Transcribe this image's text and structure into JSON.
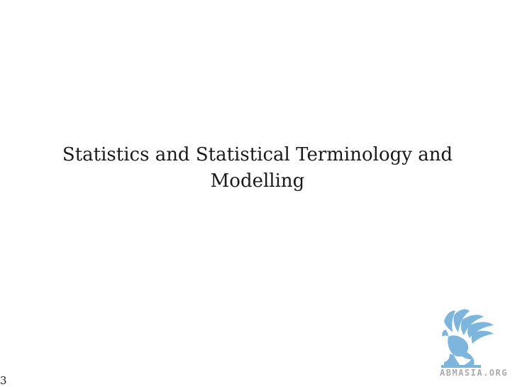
{
  "slide": {
    "title_line1": "Statistics and Statistical Terminology and",
    "title_line2": "Modelling",
    "page_number": "3"
  },
  "watermark": {
    "text": "ABMASIA.ORG",
    "accent_color": "#7cb6df",
    "text_color": "#a9a9a9",
    "icon": "griffin-logo"
  }
}
